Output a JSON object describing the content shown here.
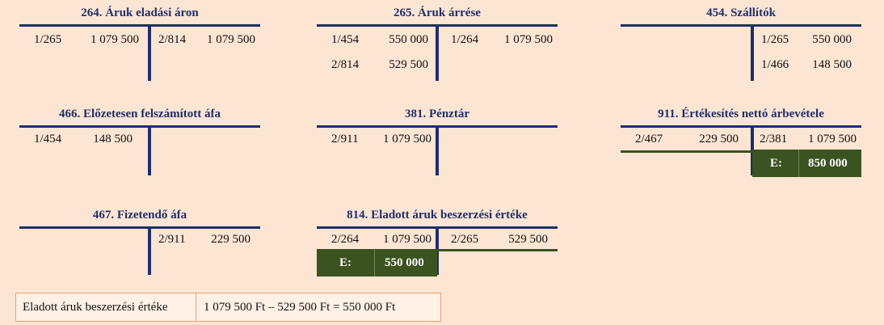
{
  "accounts": {
    "a264": {
      "title": "264. Áruk eladási áron",
      "debit": [
        {
          "ref": "1/265",
          "amount": "1 079 500"
        }
      ],
      "credit": [
        {
          "ref": "2/814",
          "amount": "1 079 500"
        }
      ]
    },
    "a265": {
      "title": "265. Áruk árrése",
      "debit": [
        {
          "ref": "1/454",
          "amount": "550 000"
        },
        {
          "ref": "2/814",
          "amount": "529 500"
        }
      ],
      "credit": [
        {
          "ref": "1/264",
          "amount": "1 079 500"
        }
      ]
    },
    "a454": {
      "title": "454. Szállítók",
      "credit": [
        {
          "ref": "1/265",
          "amount": "550 000"
        },
        {
          "ref": "1/466",
          "amount": "148 500"
        }
      ]
    },
    "a466": {
      "title": "466. Előzetesen felszámított áfa",
      "debit": [
        {
          "ref": "1/454",
          "amount": "148 500"
        }
      ]
    },
    "a381": {
      "title": "381. Pénztár",
      "debit": [
        {
          "ref": "2/911",
          "amount": "1 079 500"
        }
      ]
    },
    "a911": {
      "title": "911. Értékesítés nettó árbevétele",
      "debit": [
        {
          "ref": "2/467",
          "amount": "229 500"
        }
      ],
      "credit": [
        {
          "ref": "2/381",
          "amount": "1 079 500"
        }
      ],
      "balance_label": "E:",
      "balance_value": "850 000"
    },
    "a467": {
      "title": "467. Fizetendő áfa",
      "credit": [
        {
          "ref": "2/911",
          "amount": "229 500"
        }
      ]
    },
    "a814": {
      "title": "814. Eladott áruk beszerzési értéke",
      "debit": [
        {
          "ref": "2/264",
          "amount": "1 079 500"
        }
      ],
      "credit": [
        {
          "ref": "2/265",
          "amount": "529 500"
        }
      ],
      "balance_label": "E:",
      "balance_value": "550 000"
    }
  },
  "calculation": {
    "label": "Eladott áruk beszerzési értéke",
    "formula": "1 079 500 Ft – 529 500 Ft = 550 000 Ft"
  },
  "colors": {
    "header": "#1e2f6a",
    "balance_box": "#3b5320",
    "background": "#fde5d4",
    "calc_border": "#e8a070"
  }
}
